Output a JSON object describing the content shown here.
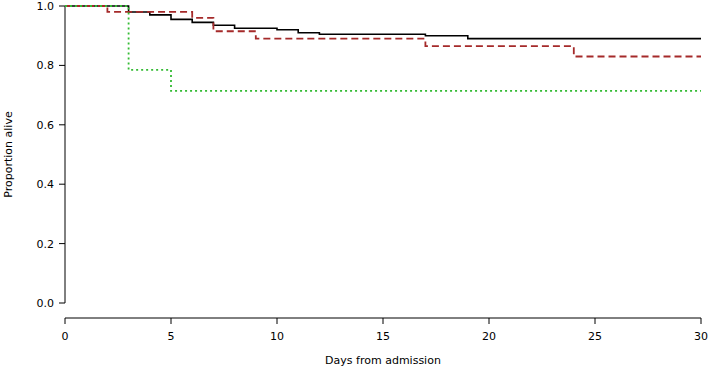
{
  "chart_data": {
    "type": "step",
    "x_label": "Days from admission",
    "y_label": "Proportion alive",
    "xlim": [
      0,
      30
    ],
    "ylim": [
      0,
      1
    ],
    "xticks": [
      0,
      5,
      10,
      15,
      20,
      25,
      30
    ],
    "yticks": [
      {
        "value": 0,
        "label": "0.0"
      },
      0.2,
      0.4,
      0.6,
      0.8,
      {
        "value": 1,
        "label": "1.0"
      }
    ],
    "series": [
      {
        "color": "#000000",
        "line_style": "solid",
        "x": [
          0,
          3,
          4,
          5,
          6,
          7,
          8,
          10,
          11,
          12,
          17,
          19,
          30
        ],
        "values": [
          1,
          0.98,
          0.97,
          0.955,
          0.945,
          0.935,
          0.925,
          0.92,
          0.91,
          0.905,
          0.9,
          0.89,
          0.89
        ]
      },
      {
        "color": "#a52a2a",
        "line_style": "dashed",
        "x": [
          0,
          2,
          6,
          7,
          9,
          17,
          24,
          30
        ],
        "values": [
          1,
          0.98,
          0.96,
          0.915,
          0.89,
          0.865,
          0.83,
          0.83
        ]
      },
      {
        "color": "#33bb33",
        "line_style": "dotted",
        "x": [
          0,
          3,
          5,
          30
        ],
        "values": [
          1,
          0.785,
          0.714,
          0.714
        ]
      }
    ]
  }
}
